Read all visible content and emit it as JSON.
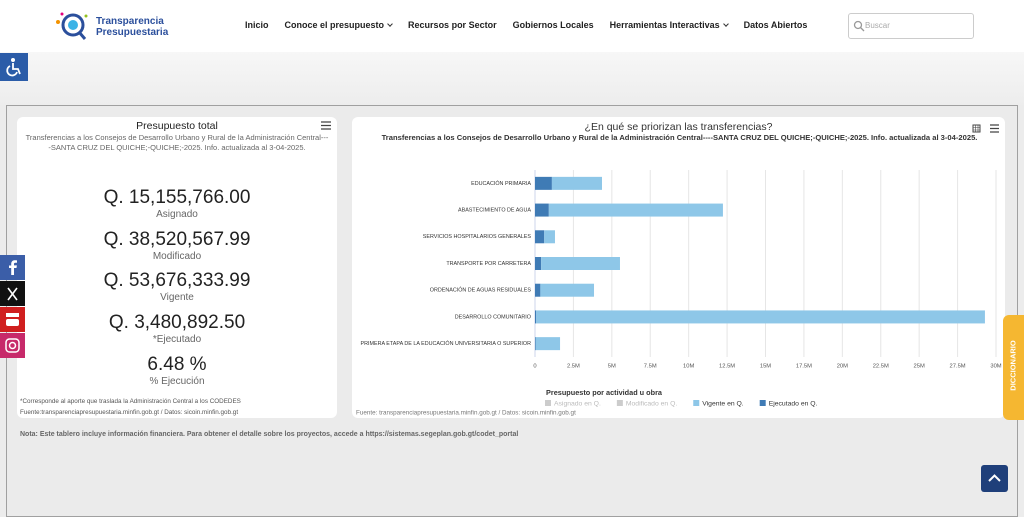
{
  "header": {
    "logo_line1": "Transparencia",
    "logo_line2": "Presupuestaria",
    "nav": [
      "Inicio",
      "Conoce el presupuesto",
      "Recursos por Sector",
      "Gobiernos Locales",
      "Herramientas Interactivas",
      "Datos Abiertos"
    ],
    "search_placeholder": "Buscar"
  },
  "summary": {
    "title": "Presupuesto total",
    "subtitle": "Transferencias a los Consejos de Desarrollo Urbano y Rural de la Administración Central----SANTA CRUZ DEL QUICHE;-QUICHE;-2025. Info. actualizada al 3-04-2025.",
    "items": [
      {
        "value": "Q. 15,155,766.00",
        "label": "Asignado"
      },
      {
        "value": "Q. 38,520,567.99",
        "label": "Modificado"
      },
      {
        "value": "Q. 53,676,333.99",
        "label": "Vigente"
      },
      {
        "value": "Q. 3,480,892.50",
        "label": "*Ejecutado"
      },
      {
        "value": "6.48 %",
        "label": "% Ejecución"
      }
    ],
    "footnote": "*Corresponde al aporte que traslada la Administración Central a los CODEDES",
    "source": "Fuente:transparenciapresupuestaria.minfin.gob.gt / Datos: sicoin.minfin.gob.gt"
  },
  "chart_data": {
    "type": "bar",
    "orientation": "horizontal",
    "stacked": true,
    "title": "¿En qué se priorizan las transferencias?",
    "subtitle": "Transferencias a los Consejos de Desarrollo Urbano y Rural de la Administración Central----SANTA CRUZ DEL QUICHE;-QUICHE;-2025. Info. actualizada al 3-04-2025.",
    "categories": [
      "EDUCACIÓN PRIMARIA",
      "ABASTECIMIENTO DE AGUA",
      "SERVICIOS HOSPITALARIOS GENERALES",
      "TRANSPORTE POR CARRETERA",
      "ORDENACIÓN DE AGUAS RESIDUALES",
      "DESARROLLO COMUNITARIO",
      "PRIMERA ETAPA DE LA EDUCACIÓN UNIVERSITARIA O SUPERIOR"
    ],
    "series": [
      {
        "name": "Asignado en Q.",
        "color": "#cccccc",
        "visible": false,
        "values": [
          null,
          null,
          null,
          null,
          null,
          null,
          null
        ]
      },
      {
        "name": "Modificado en Q.",
        "color": "#cccccc",
        "visible": false,
        "values": [
          null,
          null,
          null,
          null,
          null,
          null,
          null
        ]
      },
      {
        "name": "Vigente en Q.",
        "color": "#8ec7e8",
        "values": [
          3260000,
          11330000,
          700000,
          5130000,
          3490000,
          29200000,
          1580000
        ]
      },
      {
        "name": "Ejecutado en Q.",
        "color": "#3f7bb5",
        "values": [
          1100000,
          900000,
          600000,
          400000,
          350000,
          80000,
          50000
        ]
      }
    ],
    "legend_title": "Presupuesto por actividad u obra",
    "xlim": [
      0,
      30000000
    ],
    "xticks": [
      0,
      {
        "value": 2500000,
        "label": "2.5M"
      },
      {
        "value": 5000000,
        "label": "5M"
      },
      {
        "value": 7500000,
        "label": "7.5M"
      },
      {
        "value": 10000000,
        "label": "10M"
      },
      {
        "value": 12500000,
        "label": "12.5M"
      },
      {
        "value": 15000000,
        "label": "15M"
      },
      {
        "value": 17500000,
        "label": "17.5M"
      },
      {
        "value": 20000000,
        "label": "20M"
      },
      {
        "value": 22500000,
        "label": "22.5M"
      },
      {
        "value": 25000000,
        "label": "25M"
      },
      {
        "value": 27500000,
        "label": "27.5M"
      },
      {
        "value": 30000000,
        "label": "30M"
      }
    ],
    "grid": true,
    "credits": "Fuente: transparenciapresupuestaria.minfin.gob.gt / Datos: sicoin.minfin.gob.gt"
  },
  "note": "Nota: Este tablero incluye información financiera. Para obtener el detalle sobre los proyectos, accede a https://sistemas.segeplan.gob.gt/codet_portal",
  "side_tab": "DICCIONARIO"
}
